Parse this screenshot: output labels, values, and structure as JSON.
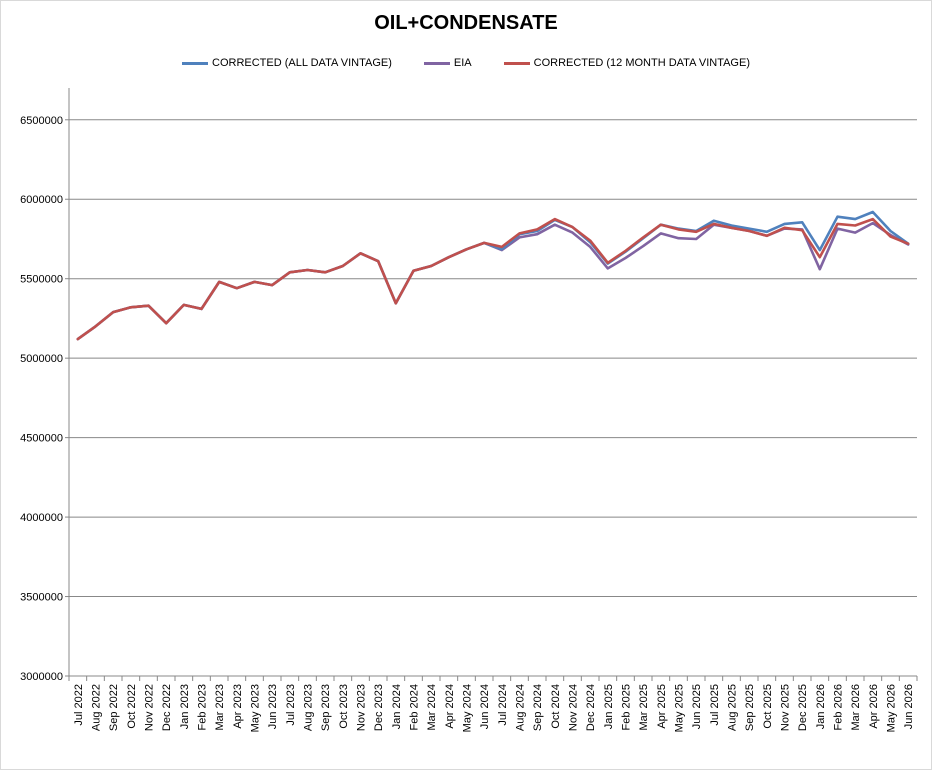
{
  "chart_data": {
    "type": "line",
    "title": "OIL+CONDENSATE",
    "xlabel": "",
    "ylabel": "",
    "ylim": [
      3000000,
      6700000
    ],
    "yticks": [
      3000000,
      3500000,
      4000000,
      4500000,
      5000000,
      5500000,
      6000000,
      6500000
    ],
    "grid": true,
    "legend_position": "top",
    "categories": [
      "Jul 2022",
      "Aug 2022",
      "Sep 2022",
      "Oct 2022",
      "Nov 2022",
      "Dec 2022",
      "Jan 2023",
      "Feb 2023",
      "Mar 2023",
      "Apr 2023",
      "May 2023",
      "Jun 2023",
      "Jul 2023",
      "Aug 2023",
      "Sep 2023",
      "Oct 2023",
      "Nov 2023",
      "Dec 2023",
      "Jan 2024",
      "Feb 2024",
      "Mar 2024",
      "Apr 2024",
      "May 2024",
      "Jun 2024",
      "Jul 2024",
      "Aug 2024",
      "Sep 2024",
      "Oct 2024",
      "Nov 2024",
      "Dec 2024",
      "Jan 2025",
      "Feb 2025",
      "Mar 2025",
      "Apr 2025",
      "May 2025",
      "Jun 2025",
      "Jul 2025",
      "Aug 2025",
      "Sep 2025",
      "Oct 2025",
      "Nov 2025",
      "Dec 2025",
      "Jan 2026",
      "Feb 2026",
      "Mar 2026",
      "Apr 2026",
      "May 2026",
      "Jun 2026"
    ],
    "series": [
      {
        "name": "CORRECTED (ALL DATA VINTAGE)",
        "color": "#4F81BD",
        "values": [
          5120000,
          5200000,
          5290000,
          5320000,
          5330000,
          5220000,
          5335000,
          5310000,
          5480000,
          5440000,
          5480000,
          5460000,
          5540000,
          5555000,
          5540000,
          5580000,
          5660000,
          5610000,
          5345000,
          5550000,
          5580000,
          5635000,
          5685000,
          5725000,
          5685000,
          5780000,
          5800000,
          5870000,
          5825000,
          5730000,
          5595000,
          5670000,
          5755000,
          5840000,
          5815000,
          5800000,
          5865000,
          5835000,
          5815000,
          5795000,
          5845000,
          5855000,
          5680000,
          5890000,
          5875000,
          5920000,
          5800000,
          5720000
        ]
      },
      {
        "name": "EIA",
        "color": "#8064A2",
        "values": [
          5120000,
          5200000,
          5290000,
          5320000,
          5330000,
          5220000,
          5335000,
          5310000,
          5480000,
          5440000,
          5480000,
          5460000,
          5540000,
          5555000,
          5540000,
          5580000,
          5660000,
          5610000,
          5345000,
          5550000,
          5580000,
          5635000,
          5685000,
          5725000,
          5680000,
          5760000,
          5780000,
          5840000,
          5790000,
          5700000,
          5565000,
          5630000,
          5705000,
          5785000,
          5755000,
          5750000,
          5840000,
          5820000,
          5800000,
          5770000,
          5815000,
          5810000,
          5560000,
          5815000,
          5790000,
          5850000,
          5775000,
          5715000
        ]
      },
      {
        "name": "CORRECTED (12 MONTH DATA VINTAGE)",
        "color": "#C0504D",
        "values": [
          5120000,
          5200000,
          5290000,
          5320000,
          5330000,
          5220000,
          5335000,
          5310000,
          5480000,
          5440000,
          5480000,
          5460000,
          5540000,
          5555000,
          5540000,
          5580000,
          5660000,
          5610000,
          5345000,
          5550000,
          5580000,
          5635000,
          5685000,
          5725000,
          5700000,
          5785000,
          5810000,
          5875000,
          5825000,
          5740000,
          5600000,
          5675000,
          5760000,
          5840000,
          5810000,
          5795000,
          5845000,
          5820000,
          5800000,
          5770000,
          5820000,
          5805000,
          5635000,
          5845000,
          5835000,
          5875000,
          5765000,
          5720000
        ]
      }
    ]
  }
}
